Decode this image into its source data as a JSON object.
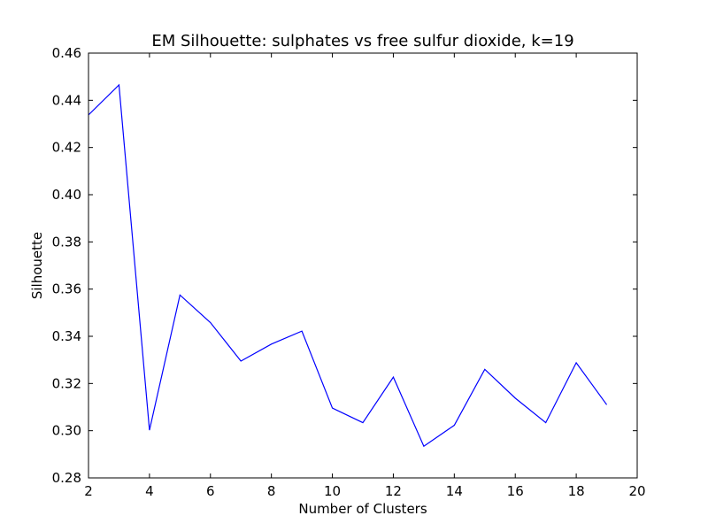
{
  "chart_data": {
    "type": "line",
    "title": "EM Silhouette: sulphates vs free sulfur dioxide, k=19",
    "xlabel": "Number of Clusters",
    "ylabel": "Silhouette",
    "xlim": [
      2,
      20
    ],
    "ylim": [
      0.28,
      0.46
    ],
    "xticks": [
      "2",
      "4",
      "6",
      "8",
      "10",
      "12",
      "14",
      "16",
      "18",
      "20"
    ],
    "yticks": [
      "0.28",
      "0.30",
      "0.32",
      "0.34",
      "0.36",
      "0.38",
      "0.40",
      "0.42",
      "0.44",
      "0.46"
    ],
    "grid": false,
    "series": [
      {
        "color": "#0000ff",
        "x": [
          2,
          3,
          4,
          5,
          6,
          7,
          8,
          9,
          10,
          11,
          12,
          13,
          14,
          15,
          16,
          17,
          18,
          19
        ],
        "y": [
          0.4338,
          0.4465,
          0.3002,
          0.3575,
          0.3458,
          0.3295,
          0.3367,
          0.3422,
          0.3096,
          0.3034,
          0.3227,
          0.2934,
          0.3023,
          0.326,
          0.3138,
          0.3034,
          0.3288,
          0.311
        ]
      }
    ]
  }
}
